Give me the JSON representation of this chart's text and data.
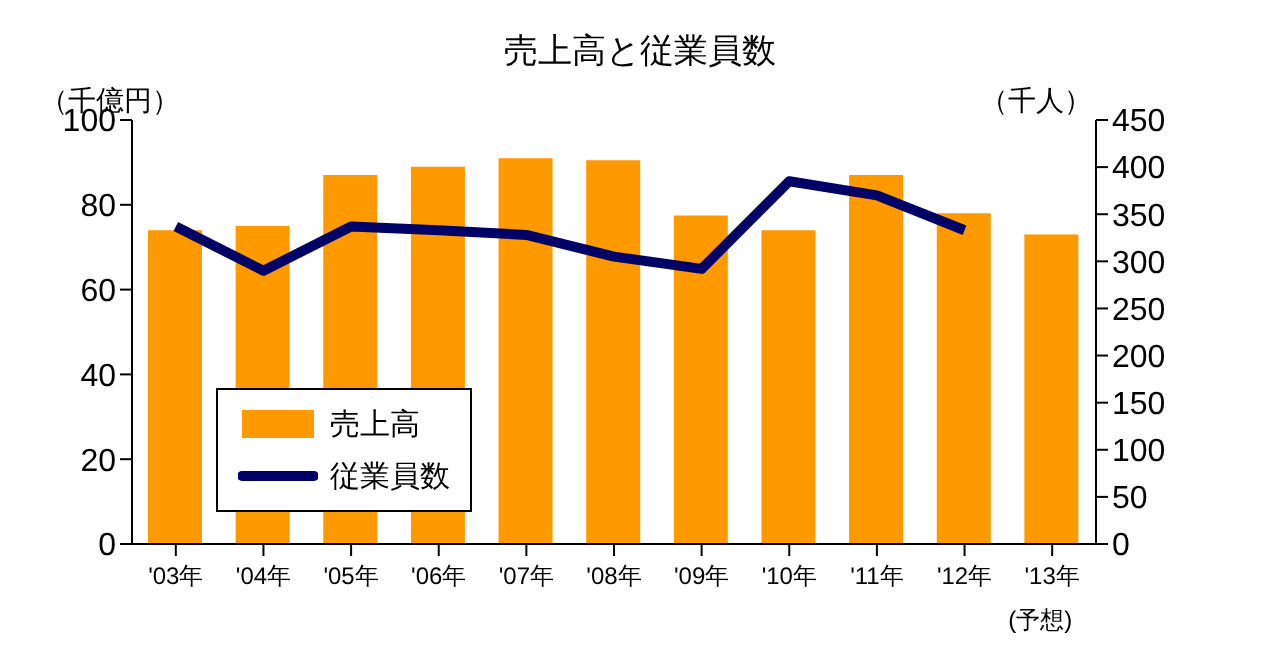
{
  "chart_data": {
    "type": "bar",
    "title": "売上高と従業員数",
    "ylabel": "（千億円）",
    "y2label": "（千人）",
    "categories": [
      "'03年",
      "'04年",
      "'05年",
      "'06年",
      "'07年",
      "'08年",
      "'09年",
      "'10年",
      "'11年",
      "'12年",
      "'13年\n(予想)"
    ],
    "series": [
      {
        "name": "売上高",
        "color": "#ff9900",
        "values": [
          74,
          75,
          87,
          89,
          91,
          90.5,
          77.5,
          74,
          87,
          78,
          73
        ]
      },
      {
        "name": "従業員数",
        "type": "line",
        "axis": "y2",
        "color": "#000066",
        "values": [
          337,
          290,
          337,
          333,
          328,
          305,
          292,
          385,
          370,
          333,
          null
        ]
      }
    ],
    "ylim": [
      0,
      100
    ],
    "yticks": [
      0,
      20,
      40,
      60,
      80,
      100
    ],
    "y2lim": [
      0,
      450
    ],
    "y2ticks": [
      0,
      50,
      100,
      150,
      200,
      250,
      300,
      350,
      400,
      450
    ],
    "legend": "bottom left",
    "grid": false,
    "marker": "none"
  }
}
